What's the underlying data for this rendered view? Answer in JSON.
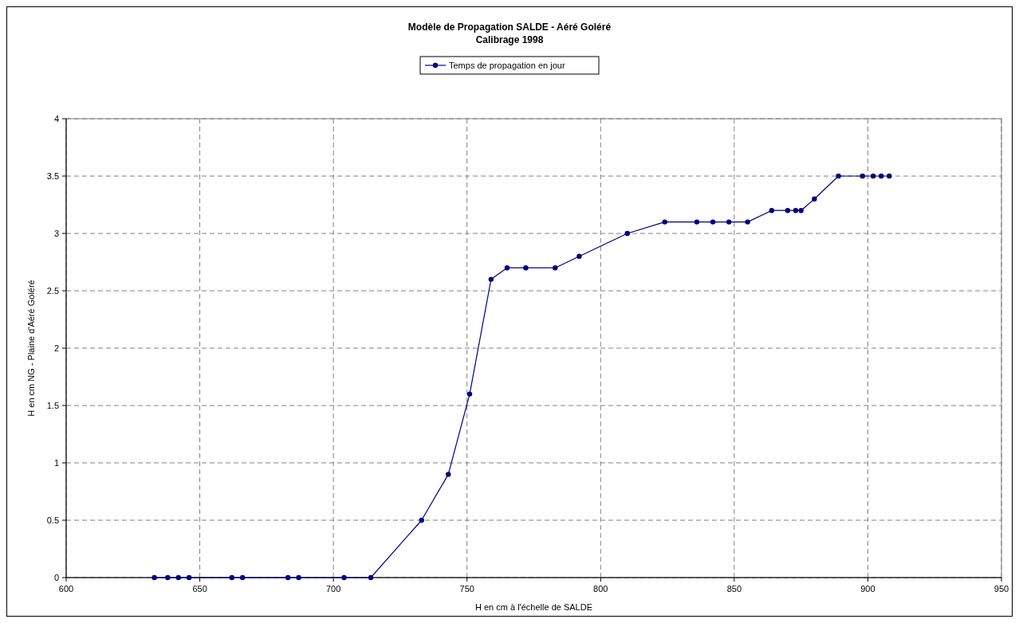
{
  "chart_data": {
    "type": "line",
    "title": "Modèle de Propagation SALDE - Aéré Goléré",
    "subtitle": "Calibrage 1998",
    "xlabel": "H en cm à l'échelle de SALDE",
    "ylabel": "H en cm NG - Plaine d'Aéré Goléré",
    "x": [
      633,
      638,
      642,
      646,
      662,
      666,
      683,
      687,
      704,
      714,
      733,
      743,
      751,
      759,
      765,
      772,
      783,
      792,
      810,
      824,
      836,
      842,
      848,
      855,
      864,
      870,
      873,
      875,
      880,
      889,
      898,
      902,
      905,
      908
    ],
    "series": [
      {
        "name": "Temps de propagation en jour",
        "color": "#000080",
        "values": [
          0,
          0,
          0,
          0,
          0,
          0,
          0,
          0,
          0,
          0,
          0.5,
          0.9,
          1.6,
          2.6,
          2.7,
          2.7,
          2.7,
          2.8,
          3.0,
          3.1,
          3.1,
          3.1,
          3.1,
          3.1,
          3.2,
          3.2,
          3.2,
          3.2,
          3.3,
          3.5,
          3.5,
          3.5,
          3.5,
          3.5
        ]
      }
    ],
    "xlim": [
      600,
      950
    ],
    "xticks": [
      600,
      650,
      700,
      750,
      800,
      850,
      900,
      950
    ],
    "ylim": [
      0,
      4
    ],
    "yticks": [
      0,
      0.5,
      1,
      1.5,
      2,
      2.5,
      3,
      3.5,
      4
    ],
    "grid": true,
    "legend": "top",
    "marker": "circle",
    "line_style": "solid"
  }
}
